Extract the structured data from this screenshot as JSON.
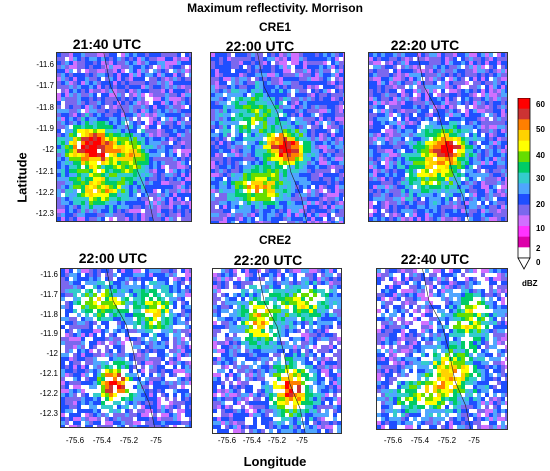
{
  "title": "Maximum reflectivity. Morrison",
  "rows": [
    {
      "label": "CRE1",
      "panels": [
        {
          "time": "21:40 UTC"
        },
        {
          "time": "22:00 UTC"
        },
        {
          "time": "22:20 UTC"
        }
      ]
    },
    {
      "label": "CRE2",
      "panels": [
        {
          "time": "22:00 UTC"
        },
        {
          "time": "22:20 UTC"
        },
        {
          "time": "22:40 UTC"
        }
      ]
    }
  ],
  "ylabel": "Latitude",
  "xlabel": "Longitude",
  "colorbar": {
    "unit": "dBZ",
    "ticks": [
      "60",
      "50",
      "40",
      "30",
      "20",
      "10",
      "2",
      "0"
    ],
    "colors": [
      "#ff0000",
      "#cc3333",
      "#ff7f00",
      "#ffd200",
      "#ffff00",
      "#66dd00",
      "#00cc66",
      "#33cccc",
      "#4fa6ff",
      "#1f4fff",
      "#7b68ee",
      "#d070ff",
      "#ff33ff",
      "#dd00aa",
      "#ffffff"
    ]
  },
  "chart_data": {
    "type": "heatmap",
    "title": "Maximum reflectivity. Morrison",
    "xlabel": "Longitude",
    "ylabel": "Latitude",
    "row1_y_ticks": [
      "-11.6",
      "-11.7",
      "-11.8",
      "-11.9",
      "-12",
      "-12.1",
      "-12.2",
      "-12.3"
    ],
    "row2_y_ticks": [
      "-11.6",
      "-11.7",
      "-11.8",
      "-11.9",
      "-12",
      "-12.1",
      "-12.2",
      "-12.3"
    ],
    "x_ticks_left": [
      "-75.6",
      "-75.4",
      "-75.2",
      "-75"
    ],
    "x_ticks_mid": [
      "-75.6",
      "-75.4",
      "-75.2",
      "-75"
    ],
    "x_ticks_right": [
      "-75.6",
      "-75.4",
      "-75.2",
      "-75"
    ],
    "ylim": [
      -12.35,
      -11.55
    ],
    "xlim": [
      -75.7,
      -75.0
    ],
    "colorbar_unit": "dBZ",
    "colorbar_range": [
      0,
      60
    ]
  }
}
